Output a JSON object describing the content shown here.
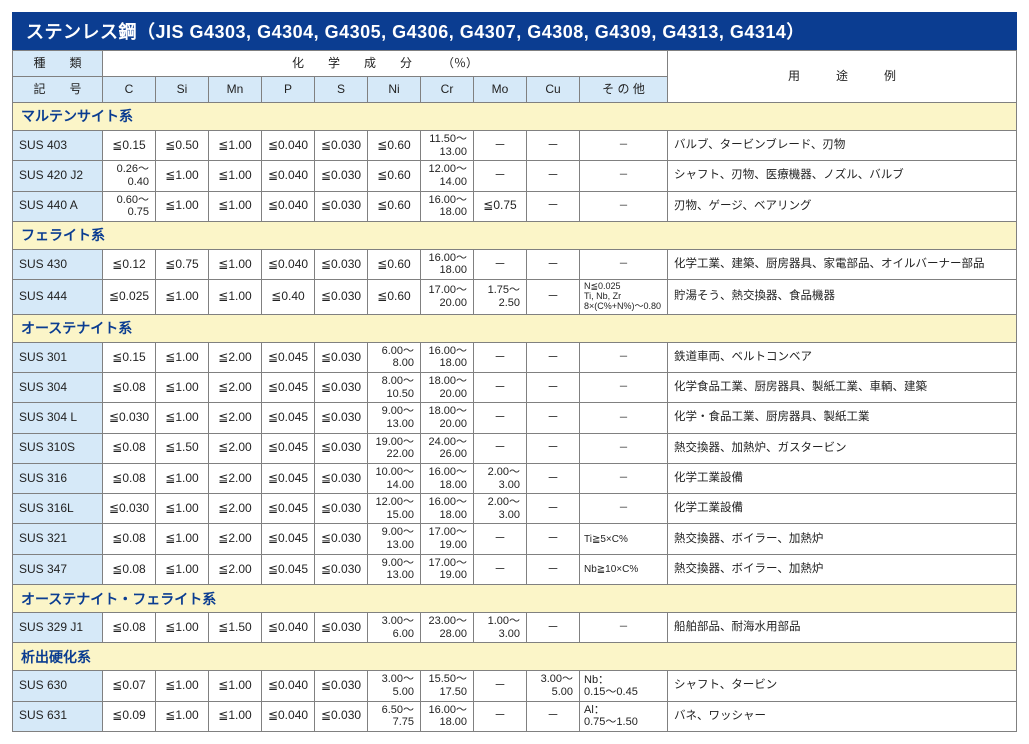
{
  "colors": {
    "title_bg": "#0b3d91",
    "title_fg": "#ffffff",
    "header_blue": "#d6e9f8",
    "group_yellow": "#fbf5c8",
    "border": "#808080"
  },
  "title": "ステンレス鋼（JIS G4303, G4304, G4305, G4306, G4307, G4308, G4309, G4313, G4314）",
  "header": {
    "type_top": "種　　類",
    "type_bottom": "記　　号",
    "chem_header": "化　　学　　成　　分　　　（％）",
    "use_header": "用　　　途　　　例",
    "cols": [
      "C",
      "Si",
      "Mn",
      "P",
      "S",
      "Ni",
      "Cr",
      "Mo",
      "Cu",
      "そ の 他"
    ]
  },
  "groups": [
    {
      "name": "マルテンサイト系",
      "rows": [
        {
          "grade": "SUS 403",
          "c": "≦0.15",
          "si": "≦0.50",
          "mn": "≦1.00",
          "p": "≦0.040",
          "s": "≦0.030",
          "ni": "≦0.60",
          "cr": "11.50～\n13.00",
          "mo": "－",
          "cu": "－",
          "other": "－",
          "use": "バルブ、タービンブレード、刃物"
        },
        {
          "grade": "SUS 420 J2",
          "c": "0.26～\n0.40",
          "si": "≦1.00",
          "mn": "≦1.00",
          "p": "≦0.040",
          "s": "≦0.030",
          "ni": "≦0.60",
          "cr": "12.00～\n14.00",
          "mo": "－",
          "cu": "－",
          "other": "－",
          "use": "シャフト、刃物、医療機器、ノズル、バルブ"
        },
        {
          "grade": "SUS 440 A",
          "c": "0.60～\n0.75",
          "si": "≦1.00",
          "mn": "≦1.00",
          "p": "≦0.040",
          "s": "≦0.030",
          "ni": "≦0.60",
          "cr": "16.00～\n18.00",
          "mo": "≦0.75",
          "cu": "－",
          "other": "－",
          "use": "刃物、ゲージ、ベアリング"
        }
      ]
    },
    {
      "name": "フェライト系",
      "rows": [
        {
          "grade": "SUS 430",
          "c": "≦0.12",
          "si": "≦0.75",
          "mn": "≦1.00",
          "p": "≦0.040",
          "s": "≦0.030",
          "ni": "≦0.60",
          "cr": "16.00～\n18.00",
          "mo": "－",
          "cu": "－",
          "other": "－",
          "use": "化学工業、建築、厨房器具、家電部品、オイルバーナー部品"
        },
        {
          "grade": "SUS 444",
          "c": "≦0.025",
          "si": "≦1.00",
          "mn": "≦1.00",
          "p": "≦0.40",
          "s": "≦0.030",
          "ni": "≦0.60",
          "cr": "17.00～\n20.00",
          "mo": "1.75～\n2.50",
          "cu": "－",
          "other": "N≦0.025\nTi, Nb, Zr\n8×(C%+N%)～0.80",
          "use": "貯湯そう、熱交換器、食品機器"
        }
      ]
    },
    {
      "name": "オーステナイト系",
      "rows": [
        {
          "grade": "SUS 301",
          "c": "≦0.15",
          "si": "≦1.00",
          "mn": "≦2.00",
          "p": "≦0.045",
          "s": "≦0.030",
          "ni": "6.00～\n8.00",
          "cr": "16.00～\n18.00",
          "mo": "－",
          "cu": "－",
          "other": "－",
          "use": "鉄道車両、ベルトコンベア"
        },
        {
          "grade": "SUS 304",
          "c": "≦0.08",
          "si": "≦1.00",
          "mn": "≦2.00",
          "p": "≦0.045",
          "s": "≦0.030",
          "ni": "8.00～\n10.50",
          "cr": "18.00～\n20.00",
          "mo": "－",
          "cu": "－",
          "other": "－",
          "use": "化学食品工業、厨房器具、製紙工業、車輌、建築"
        },
        {
          "grade": "SUS 304 L",
          "c": "≦0.030",
          "si": "≦1.00",
          "mn": "≦2.00",
          "p": "≦0.045",
          "s": "≦0.030",
          "ni": "9.00～\n13.00",
          "cr": "18.00～\n20.00",
          "mo": "－",
          "cu": "－",
          "other": "－",
          "use": "化学・食品工業、厨房器具、製紙工業"
        },
        {
          "grade": "SUS 310S",
          "c": "≦0.08",
          "si": "≦1.50",
          "mn": "≦2.00",
          "p": "≦0.045",
          "s": "≦0.030",
          "ni": "19.00～\n22.00",
          "cr": "24.00～\n26.00",
          "mo": "－",
          "cu": "－",
          "other": "－",
          "use": "熱交換器、加熱炉、ガスタービン"
        },
        {
          "grade": "SUS 316",
          "c": "≦0.08",
          "si": "≦1.00",
          "mn": "≦2.00",
          "p": "≦0.045",
          "s": "≦0.030",
          "ni": "10.00～\n14.00",
          "cr": "16.00～\n18.00",
          "mo": "2.00～\n3.00",
          "cu": "－",
          "other": "－",
          "use": "化学工業設備"
        },
        {
          "grade": "SUS 316L",
          "c": "≦0.030",
          "si": "≦1.00",
          "mn": "≦2.00",
          "p": "≦0.045",
          "s": "≦0.030",
          "ni": "12.00～\n15.00",
          "cr": "16.00～\n18.00",
          "mo": "2.00～\n3.00",
          "cu": "－",
          "other": "－",
          "use": "化学工業設備"
        },
        {
          "grade": "SUS 321",
          "c": "≦0.08",
          "si": "≦1.00",
          "mn": "≦2.00",
          "p": "≦0.045",
          "s": "≦0.030",
          "ni": "9.00～\n13.00",
          "cr": "17.00～\n19.00",
          "mo": "－",
          "cu": "－",
          "other": "Ti≧5×C%",
          "use": "熱交換器、ボイラー、加熱炉"
        },
        {
          "grade": "SUS 347",
          "c": "≦0.08",
          "si": "≦1.00",
          "mn": "≦2.00",
          "p": "≦0.045",
          "s": "≦0.030",
          "ni": "9.00～\n13.00",
          "cr": "17.00～\n19.00",
          "mo": "－",
          "cu": "－",
          "other": "Nb≧10×C%",
          "use": "熱交換器、ボイラー、加熱炉"
        }
      ]
    },
    {
      "name": "オーステナイト・フェライト系",
      "rows": [
        {
          "grade": "SUS 329 J1",
          "c": "≦0.08",
          "si": "≦1.00",
          "mn": "≦1.50",
          "p": "≦0.040",
          "s": "≦0.030",
          "ni": "3.00～\n6.00",
          "cr": "23.00～\n28.00",
          "mo": "1.00～\n3.00",
          "cu": "－",
          "other": "－",
          "use": "船舶部品、耐海水用部品"
        }
      ]
    },
    {
      "name": "析出硬化系",
      "rows": [
        {
          "grade": "SUS 630",
          "c": "≦0.07",
          "si": "≦1.00",
          "mn": "≦1.00",
          "p": "≦0.040",
          "s": "≦0.030",
          "ni": "3.00～\n5.00",
          "cr": "15.50～\n17.50",
          "mo": "－",
          "cu": "3.00～\n5.00",
          "other": "Nb：\n0.15～0.45",
          "use": "シャフト、タービン"
        },
        {
          "grade": "SUS 631",
          "c": "≦0.09",
          "si": "≦1.00",
          "mn": "≦1.00",
          "p": "≦0.040",
          "s": "≦0.030",
          "ni": "6.50～\n7.75",
          "cr": "16.00～\n18.00",
          "mo": "－",
          "cu": "－",
          "other": "Al：\n0.75～1.50",
          "use": "バネ、ワッシャー"
        }
      ]
    }
  ],
  "col_widths": {
    "grade": "90px",
    "chem": "53px",
    "other": "88px",
    "use": "300px"
  }
}
